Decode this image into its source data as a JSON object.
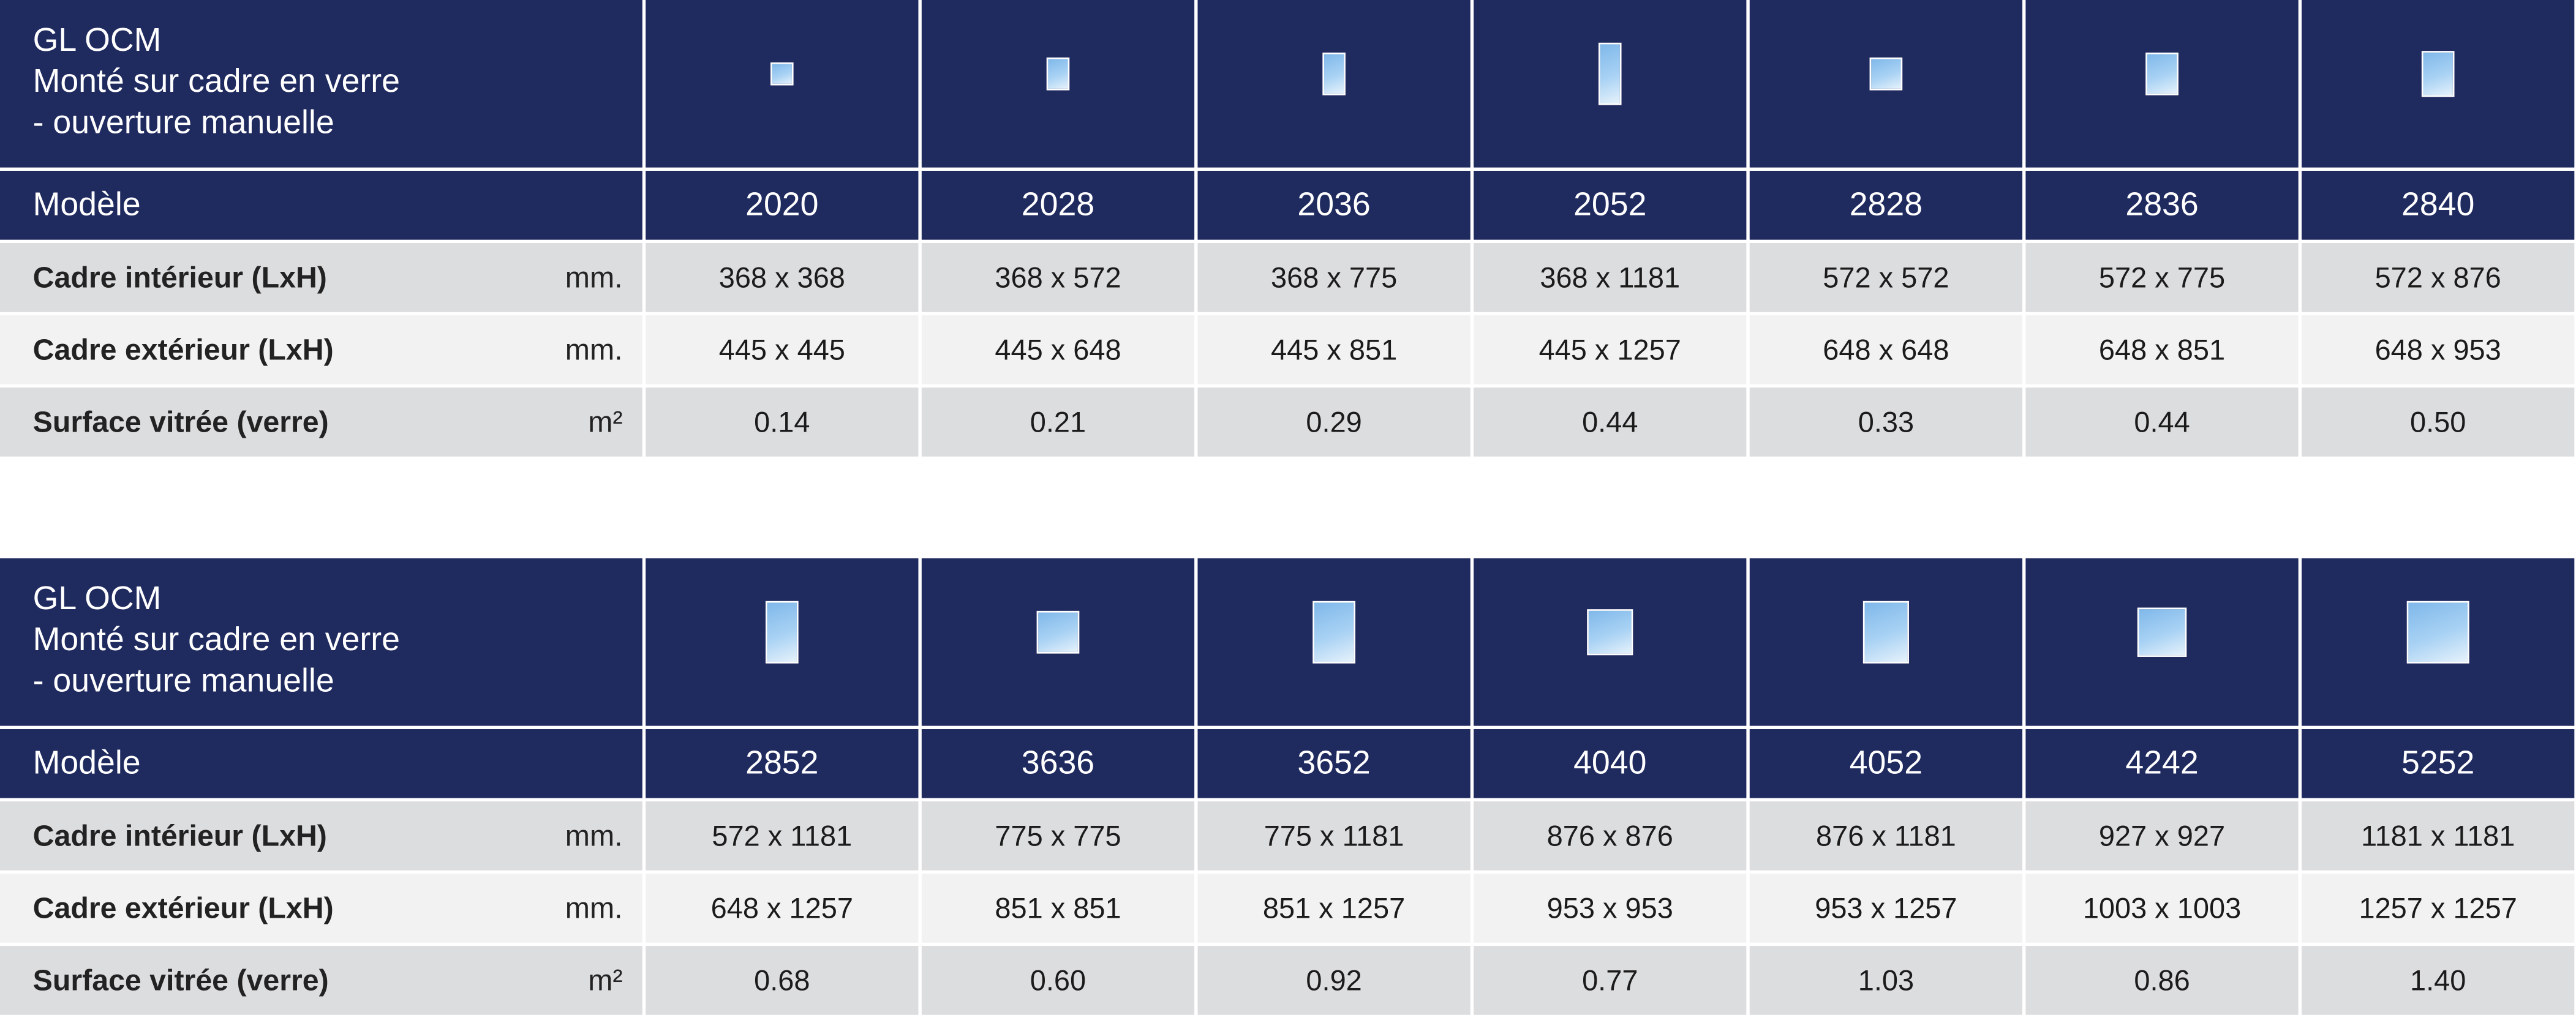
{
  "tables": [
    {
      "title_lines": [
        "GL OCM",
        "Monté sur cadre en verre",
        "- ouverture manuelle"
      ],
      "model_label": "Modèle",
      "models": [
        "2020",
        "2028",
        "2036",
        "2052",
        "2828",
        "2836",
        "2840"
      ],
      "rows": [
        {
          "label": "Cadre intérieur (LxH)",
          "unit": "mm.",
          "values": [
            "368 x 368",
            "368 x 572",
            "368 x 775",
            "368 x 1181",
            "572 x 572",
            "572 x 775",
            "572 x 876"
          ]
        },
        {
          "label": "Cadre extérieur (LxH)",
          "unit": "mm.",
          "values": [
            "445 x 445",
            "445 x 648",
            "445 x 851",
            "445 x 1257",
            "648 x 648",
            "648 x 851",
            "648 x 953"
          ]
        },
        {
          "label": "Surface vitrée (verre)",
          "unit": "m²",
          "values": [
            "0.14",
            "0.21",
            "0.29",
            "0.44",
            "0.33",
            "0.44",
            "0.50"
          ]
        }
      ]
    },
    {
      "title_lines": [
        "GL OCM",
        "Monté sur cadre en verre",
        "- ouverture manuelle"
      ],
      "model_label": "Modèle",
      "models": [
        "2852",
        "3636",
        "3652",
        "4040",
        "4052",
        "4242",
        "5252"
      ],
      "rows": [
        {
          "label": "Cadre intérieur (LxH)",
          "unit": "mm.",
          "values": [
            "572 x 1181",
            "775 x 775",
            "775 x 1181",
            "876 x 876",
            "876 x 1181",
            "927 x 927",
            "1181 x 1181"
          ]
        },
        {
          "label": "Cadre extérieur (LxH)",
          "unit": "mm.",
          "values": [
            "648 x 1257",
            "851 x 851",
            "851 x 1257",
            "953 x 953",
            "953 x 1257",
            "1003 x 1003",
            "1257 x 1257"
          ]
        },
        {
          "label": "Surface vitrée (verre)",
          "unit": "m²",
          "values": [
            "0.68",
            "0.60",
            "0.92",
            "0.77",
            "1.03",
            "0.86",
            "1.40"
          ]
        }
      ]
    }
  ]
}
